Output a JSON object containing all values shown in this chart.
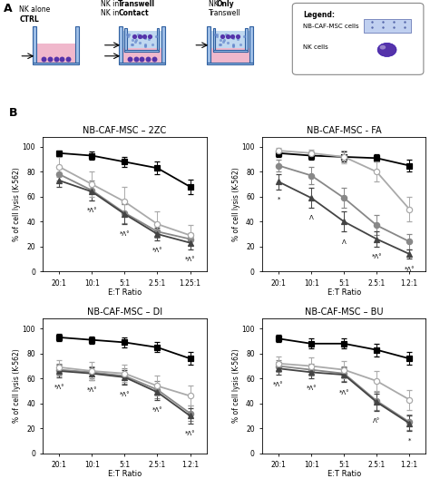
{
  "x_labels_2ZC": [
    "20:1",
    "10:1",
    "5:1",
    "2.5:1",
    "1.25:1"
  ],
  "x_labels_other": [
    "20:1",
    "10:1",
    "5:1",
    "2.5:1",
    "1.2:1"
  ],
  "titles": [
    "NB-CAF-MSC – 2ZC",
    "NB-CAF-MSC - FA",
    "NB-CAF-MSC – DI",
    "NB-CAF-MSC – BU"
  ],
  "ylabel": "% of cell lysis (K-562)",
  "xlabel": "E:T Ratio",
  "series_labels": [
    "CTRL",
    "Contact",
    "Transwell",
    "Only Transwell"
  ],
  "data_2ZC": {
    "CTRL": [
      95,
      93,
      88,
      83,
      68
    ],
    "CTRL_err": [
      2,
      3,
      4,
      5,
      6
    ],
    "Contact": [
      78,
      65,
      47,
      32,
      26
    ],
    "Contact_err": [
      5,
      8,
      8,
      5,
      5
    ],
    "Transwell": [
      73,
      64,
      46,
      30,
      23
    ],
    "Transwell_err": [
      5,
      7,
      8,
      5,
      5
    ],
    "OnlyTranswell": [
      84,
      70,
      56,
      38,
      29
    ],
    "OnlyTranswell_err": [
      8,
      10,
      12,
      10,
      8
    ]
  },
  "data_FA": {
    "CTRL": [
      95,
      93,
      92,
      91,
      85
    ],
    "CTRL_err": [
      3,
      3,
      4,
      3,
      5
    ],
    "Contact": [
      85,
      77,
      59,
      37,
      24
    ],
    "Contact_err": [
      5,
      7,
      8,
      8,
      6
    ],
    "Transwell": [
      72,
      59,
      40,
      26,
      14
    ],
    "Transwell_err": [
      6,
      8,
      8,
      6,
      4
    ],
    "OnlyTranswell": [
      97,
      95,
      92,
      80,
      50
    ],
    "OnlyTranswell_err": [
      2,
      3,
      5,
      8,
      10
    ]
  },
  "data_DI": {
    "CTRL": [
      93,
      91,
      89,
      85,
      76
    ],
    "CTRL_err": [
      3,
      3,
      4,
      4,
      5
    ],
    "Contact": [
      67,
      65,
      62,
      51,
      32
    ],
    "Contact_err": [
      5,
      5,
      6,
      7,
      6
    ],
    "Transwell": [
      66,
      64,
      61,
      49,
      30
    ],
    "Transwell_err": [
      5,
      5,
      6,
      6,
      6
    ],
    "OnlyTranswell": [
      69,
      66,
      64,
      54,
      46
    ],
    "OnlyTranswell_err": [
      6,
      7,
      7,
      8,
      8
    ]
  },
  "data_BU": {
    "CTRL": [
      92,
      88,
      88,
      83,
      76
    ],
    "CTRL_err": [
      3,
      4,
      4,
      5,
      5
    ],
    "Contact": [
      70,
      67,
      64,
      42,
      25
    ],
    "Contact_err": [
      5,
      5,
      6,
      7,
      6
    ],
    "Transwell": [
      68,
      65,
      63,
      41,
      24
    ],
    "Transwell_err": [
      5,
      5,
      6,
      7,
      6
    ],
    "OnlyTranswell": [
      72,
      70,
      67,
      58,
      43
    ],
    "OnlyTranswell_err": [
      6,
      7,
      7,
      8,
      8
    ]
  },
  "colors": {
    "CTRL": "#000000",
    "Contact": "#888888",
    "Transwell": "#444444",
    "OnlyTranswell": "#aaaaaa"
  },
  "markers": {
    "CTRL": "s",
    "Contact": "o",
    "Transwell": "^",
    "OnlyTranswell": "o"
  },
  "annot_2ZC": [
    [
      1,
      "*Λ°"
    ],
    [
      2,
      "*Λ°"
    ],
    [
      3,
      "*Λ°"
    ],
    [
      4,
      "*Λ°"
    ]
  ],
  "annot_FA": [
    [
      0,
      "*"
    ],
    [
      1,
      "Λ"
    ],
    [
      2,
      "Λ"
    ],
    [
      3,
      "*Λ°"
    ],
    [
      4,
      "*Λ°"
    ]
  ],
  "annot_DI": [
    [
      0,
      "*Λ°"
    ],
    [
      1,
      "*Λ°"
    ],
    [
      2,
      "*Λ°"
    ],
    [
      3,
      "*Λ°"
    ],
    [
      4,
      "*Λ°"
    ]
  ],
  "annot_BU": [
    [
      0,
      "*Λ°"
    ],
    [
      1,
      "*Λ°"
    ],
    [
      2,
      "*Λ°"
    ],
    [
      3,
      "Λ°"
    ],
    [
      4,
      "*"
    ]
  ],
  "vessel_color": "#a0c0e8",
  "vessel_pink": "#f0b8cc",
  "vessel_blue_fill": "#c0d8f0",
  "nk_dot_color": "#5533aa",
  "legend_box_color": "#e8ecf8"
}
